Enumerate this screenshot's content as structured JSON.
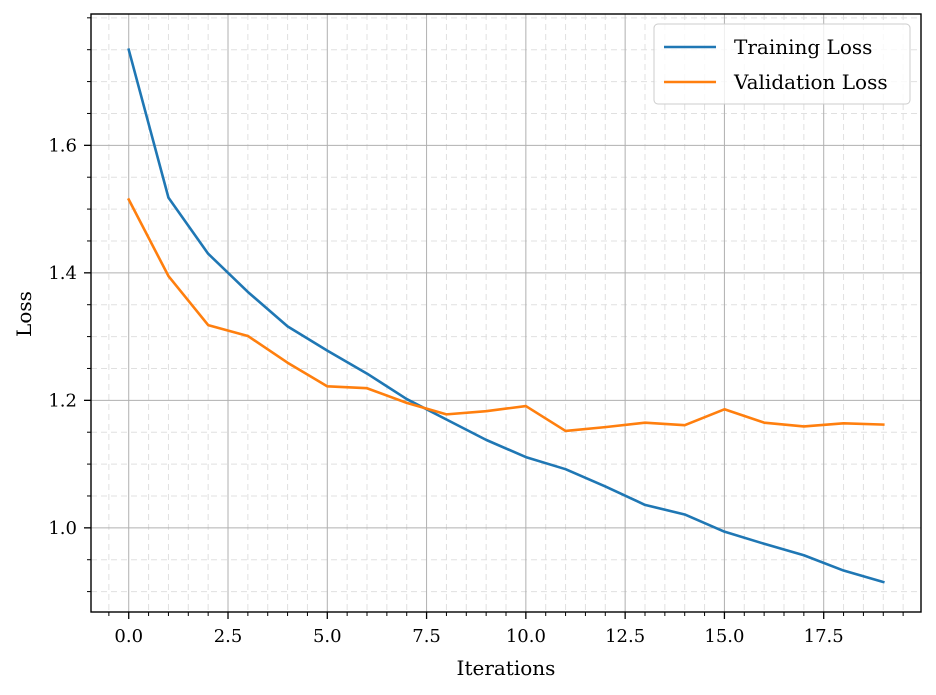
{
  "chart_data": {
    "type": "line",
    "title": "",
    "xlabel": "Iterations",
    "ylabel": "Loss",
    "xlim": [
      -0.95,
      19.95
    ],
    "ylim": [
      0.868,
      1.806
    ],
    "xticks": [
      0.0,
      2.5,
      5.0,
      7.5,
      10.0,
      12.5,
      15.0,
      17.5
    ],
    "xtick_labels": [
      "0.0",
      "2.5",
      "5.0",
      "7.5",
      "10.0",
      "12.5",
      "15.0",
      "17.5"
    ],
    "yticks": [
      1.0,
      1.2,
      1.4,
      1.6
    ],
    "ytick_labels": [
      "1.0",
      "1.2",
      "1.4",
      "1.6"
    ],
    "x_minor_step": 0.5,
    "y_minor_step": 0.05,
    "grid": "major solid, minor dashed",
    "legend_position": "upper right",
    "series": [
      {
        "name": "Training Loss",
        "color": "#1f77b4",
        "x": [
          0,
          1,
          2,
          3,
          4,
          5,
          6,
          7,
          8,
          9,
          10,
          11,
          12,
          13,
          14,
          15,
          16,
          17,
          18,
          19
        ],
        "y": [
          1.75,
          1.518,
          1.43,
          1.37,
          1.316,
          1.278,
          1.242,
          1.202,
          1.17,
          1.138,
          1.111,
          1.092,
          1.065,
          1.036,
          1.021,
          0.994,
          0.975,
          0.957,
          0.933,
          0.915
        ]
      },
      {
        "name": "Validation Loss",
        "color": "#ff7f0e",
        "x": [
          0,
          1,
          2,
          3,
          4,
          5,
          6,
          7,
          8,
          9,
          10,
          11,
          12,
          13,
          14,
          15,
          16,
          17,
          18,
          19
        ],
        "y": [
          1.515,
          1.395,
          1.318,
          1.301,
          1.259,
          1.222,
          1.219,
          1.196,
          1.178,
          1.183,
          1.191,
          1.152,
          1.158,
          1.165,
          1.161,
          1.186,
          1.165,
          1.159,
          1.164,
          1.162
        ]
      }
    ]
  }
}
